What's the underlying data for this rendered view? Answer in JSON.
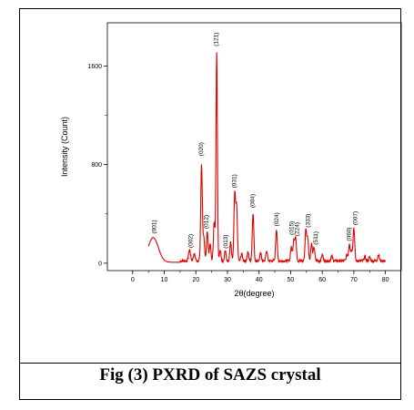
{
  "caption": "Fig (3) PXRD of SAZS crystal",
  "chart_data": {
    "type": "line",
    "title": "",
    "xlabel": "2θ(degree)",
    "ylabel": "Intensity (Count)",
    "xlim": [
      -8,
      85
    ],
    "ylim": [
      -60,
      1950
    ],
    "x_ticks": [
      0,
      10,
      20,
      30,
      40,
      50,
      60,
      70,
      80
    ],
    "x_tick_labels": [
      "0",
      "10",
      "20",
      "30",
      "40",
      "50",
      "60",
      "70",
      "80"
    ],
    "y_ticks": [
      0,
      800,
      1600
    ],
    "y_tick_labels": [
      "0",
      "800",
      "1600"
    ],
    "grid": false,
    "line_color": "#e00000",
    "series": [
      {
        "peaks": [
          {
            "x": 6.5,
            "y": 200,
            "w": 1.6
          },
          {
            "x": 18.0,
            "y": 90,
            "w": 0.3
          },
          {
            "x": 19.5,
            "y": 55,
            "w": 0.3
          },
          {
            "x": 21.8,
            "y": 780,
            "w": 0.25
          },
          {
            "x": 22.5,
            "y": 180,
            "w": 0.25
          },
          {
            "x": 23.6,
            "y": 240,
            "w": 0.25
          },
          {
            "x": 24.5,
            "y": 140,
            "w": 0.25
          },
          {
            "x": 25.8,
            "y": 310,
            "w": 0.25
          },
          {
            "x": 26.6,
            "y": 1700,
            "w": 0.22
          },
          {
            "x": 27.7,
            "y": 90,
            "w": 0.25
          },
          {
            "x": 29.3,
            "y": 80,
            "w": 0.25
          },
          {
            "x": 31.0,
            "y": 150,
            "w": 0.25
          },
          {
            "x": 32.3,
            "y": 540,
            "w": 0.25
          },
          {
            "x": 32.9,
            "y": 430,
            "w": 0.25
          },
          {
            "x": 34.5,
            "y": 60,
            "w": 0.25
          },
          {
            "x": 36.5,
            "y": 70,
            "w": 0.25
          },
          {
            "x": 38.1,
            "y": 390,
            "w": 0.25
          },
          {
            "x": 40.5,
            "y": 60,
            "w": 0.25
          },
          {
            "x": 42.4,
            "y": 80,
            "w": 0.25
          },
          {
            "x": 45.5,
            "y": 260,
            "w": 0.25
          },
          {
            "x": 50.2,
            "y": 110,
            "w": 0.25
          },
          {
            "x": 51.0,
            "y": 170,
            "w": 0.25
          },
          {
            "x": 51.6,
            "y": 180,
            "w": 0.25
          },
          {
            "x": 54.8,
            "y": 250,
            "w": 0.25
          },
          {
            "x": 55.4,
            "y": 180,
            "w": 0.25
          },
          {
            "x": 56.6,
            "y": 140,
            "w": 0.25
          },
          {
            "x": 57.4,
            "y": 110,
            "w": 0.25
          },
          {
            "x": 60.0,
            "y": 50,
            "w": 0.25
          },
          {
            "x": 63.0,
            "y": 40,
            "w": 0.25
          },
          {
            "x": 67.8,
            "y": 50,
            "w": 0.25
          },
          {
            "x": 68.6,
            "y": 140,
            "w": 0.25
          },
          {
            "x": 69.3,
            "y": 80,
            "w": 0.25
          },
          {
            "x": 70.0,
            "y": 270,
            "w": 0.25
          },
          {
            "x": 73.5,
            "y": 35,
            "w": 0.25
          },
          {
            "x": 75.0,
            "y": 30,
            "w": 0.25
          },
          {
            "x": 77.8,
            "y": 50,
            "w": 0.25
          }
        ]
      }
    ],
    "annotations": [
      {
        "label": "(001)",
        "x": 6.8,
        "y": 210
      },
      {
        "label": "(002)",
        "x": 18.4,
        "y": 95
      },
      {
        "label": "(020)",
        "x": 21.6,
        "y": 840
      },
      {
        "label": "(012)",
        "x": 23.3,
        "y": 250
      },
      {
        "label": "(121)",
        "x": 26.4,
        "y": 1730
      },
      {
        "label": "(013)",
        "x": 29.5,
        "y": 90
      },
      {
        "label": "(031)",
        "x": 32.1,
        "y": 580
      },
      {
        "label": "(004)",
        "x": 38.0,
        "y": 420
      },
      {
        "label": "(024)",
        "x": 45.6,
        "y": 270
      },
      {
        "label": "(015)",
        "x": 50.3,
        "y": 200
      },
      {
        "label": "(224)",
        "x": 52.0,
        "y": 190
      },
      {
        "label": "(333)",
        "x": 55.5,
        "y": 260
      },
      {
        "label": "(511)",
        "x": 57.9,
        "y": 120
      },
      {
        "label": "(060)",
        "x": 68.4,
        "y": 150
      },
      {
        "label": "(007)",
        "x": 70.4,
        "y": 280
      }
    ]
  }
}
